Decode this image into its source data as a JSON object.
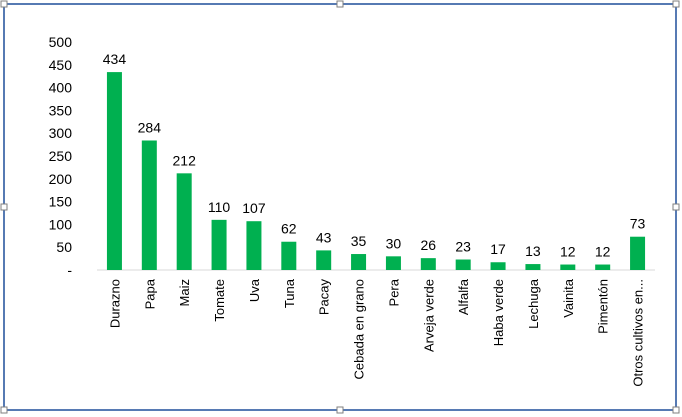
{
  "chart_data": {
    "type": "bar",
    "title": "",
    "xlabel": "",
    "ylabel": "",
    "ylim": [
      0,
      500
    ],
    "yticks": [
      {
        "value": 0,
        "label": "-"
      },
      {
        "value": 50,
        "label": "50"
      },
      {
        "value": 100,
        "label": "100"
      },
      {
        "value": 150,
        "label": "150"
      },
      {
        "value": 200,
        "label": "200"
      },
      {
        "value": 250,
        "label": "250"
      },
      {
        "value": 300,
        "label": "300"
      },
      {
        "value": 350,
        "label": "350"
      },
      {
        "value": 400,
        "label": "400"
      },
      {
        "value": 450,
        "label": "450"
      },
      {
        "value": 500,
        "label": "500"
      }
    ],
    "grid": false,
    "legend": "none",
    "bar_color": "#00B050",
    "categories": [
      "Durazno",
      "Papa",
      "Maiz",
      "Tomate",
      "Uva",
      "Tuna",
      "Pacay",
      "Cebada en grano",
      "Pera",
      "Arveja verde",
      "Alfalfa",
      "Haba verde",
      "Lechuga",
      "Vainita",
      "Pimentón",
      "Otros cultivos en..."
    ],
    "values": [
      434,
      284,
      212,
      110,
      107,
      62,
      43,
      35,
      30,
      26,
      23,
      17,
      13,
      12,
      12,
      73
    ],
    "data_labels": [
      "434",
      "284",
      "212",
      "110",
      "107",
      "62",
      "43",
      "35",
      "30",
      "26",
      "23",
      "17",
      "13",
      "12",
      "12",
      "73"
    ]
  }
}
